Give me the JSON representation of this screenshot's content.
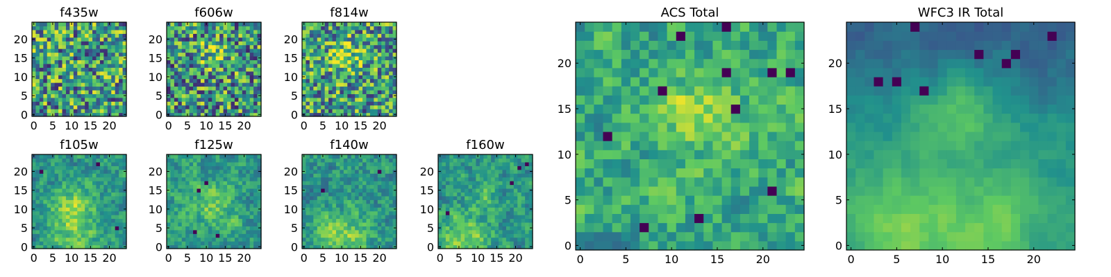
{
  "figure": {
    "colormap": "viridis",
    "colormap_stops": [
      "#440154",
      "#3b528b",
      "#21918c",
      "#5ec962",
      "#fde725"
    ]
  },
  "chart_data": [
    {
      "type": "heatmap",
      "title": "f435w",
      "grid_size": [
        25,
        25
      ],
      "xlim": [
        0,
        24
      ],
      "ylim": [
        0,
        24
      ],
      "x_ticks": [
        0,
        5,
        10,
        15,
        20
      ],
      "y_ticks": [
        0,
        5,
        10,
        15,
        20
      ],
      "x_tick_labels": [
        "0",
        "5",
        "10",
        "15",
        "20"
      ],
      "y_tick_labels": [
        "0",
        "5",
        "10",
        "15",
        "20"
      ],
      "seed": 11,
      "noise": 0.85,
      "base": 0.55,
      "blobs": [],
      "dark_spots": []
    },
    {
      "type": "heatmap",
      "title": "f606w",
      "grid_size": [
        25,
        25
      ],
      "xlim": [
        0,
        24
      ],
      "ylim": [
        0,
        24
      ],
      "x_ticks": [
        0,
        5,
        10,
        15,
        20
      ],
      "y_ticks": [
        0,
        5,
        10,
        15,
        20
      ],
      "x_tick_labels": [
        "0",
        "5",
        "10",
        "15",
        "20"
      ],
      "y_tick_labels": [
        "0",
        "5",
        "10",
        "15",
        "20"
      ],
      "seed": 23,
      "noise": 0.85,
      "base": 0.52,
      "blobs": [
        {
          "x": 12,
          "y": 16,
          "r": 3,
          "a": 0.25
        }
      ],
      "dark_spots": []
    },
    {
      "type": "heatmap",
      "title": "f814w",
      "grid_size": [
        25,
        25
      ],
      "xlim": [
        0,
        24
      ],
      "ylim": [
        0,
        24
      ],
      "x_ticks": [
        0,
        5,
        10,
        15,
        20
      ],
      "y_ticks": [
        0,
        5,
        10,
        15,
        20
      ],
      "x_tick_labels": [
        "0",
        "5",
        "10",
        "15",
        "20"
      ],
      "y_tick_labels": [
        "0",
        "5",
        "10",
        "15",
        "20"
      ],
      "seed": 37,
      "noise": 0.8,
      "base": 0.55,
      "blobs": [
        {
          "x": 11,
          "y": 16,
          "r": 3,
          "a": 0.3
        }
      ],
      "dark_spots": []
    },
    {
      "type": "heatmap",
      "title": "f105w",
      "grid_size": [
        25,
        25
      ],
      "xlim": [
        0,
        24
      ],
      "ylim": [
        0,
        24
      ],
      "x_ticks": [
        0,
        5,
        10,
        15,
        20
      ],
      "y_ticks": [
        0,
        5,
        10,
        15,
        20
      ],
      "x_tick_labels": [
        "0",
        "5",
        "10",
        "15",
        "20"
      ],
      "y_tick_labels": [
        "0",
        "5",
        "10",
        "15",
        "20"
      ],
      "seed": 41,
      "noise": 0.55,
      "base": 0.5,
      "blobs": [
        {
          "x": 11,
          "y": 12,
          "r": 4,
          "a": 0.25
        },
        {
          "x": 10,
          "y": 4,
          "r": 5,
          "a": 0.25
        }
      ],
      "dark_spots": [
        {
          "x": 2,
          "y": 20
        },
        {
          "x": 22,
          "y": 5
        },
        {
          "x": 17,
          "y": 22
        }
      ]
    },
    {
      "type": "heatmap",
      "title": "f125w",
      "grid_size": [
        25,
        25
      ],
      "xlim": [
        0,
        24
      ],
      "ylim": [
        0,
        24
      ],
      "x_ticks": [
        0,
        5,
        10,
        15,
        20
      ],
      "y_ticks": [
        0,
        5,
        10,
        15,
        20
      ],
      "x_tick_labels": [
        "0",
        "5",
        "10",
        "15",
        "20"
      ],
      "y_tick_labels": [
        "0",
        "5",
        "10",
        "15",
        "20"
      ],
      "seed": 53,
      "noise": 0.55,
      "base": 0.55,
      "blobs": [
        {
          "x": 12,
          "y": 11,
          "r": 4,
          "a": 0.2
        }
      ],
      "dark_spots": [
        {
          "x": 8,
          "y": 15
        },
        {
          "x": 10,
          "y": 17
        },
        {
          "x": 7,
          "y": 4
        },
        {
          "x": 13,
          "y": 3
        }
      ]
    },
    {
      "type": "heatmap",
      "title": "f140w",
      "grid_size": [
        25,
        25
      ],
      "xlim": [
        0,
        24
      ],
      "ylim": [
        0,
        24
      ],
      "x_ticks": [
        0,
        5,
        10,
        15,
        20
      ],
      "y_ticks": [
        0,
        5,
        10,
        15,
        20
      ],
      "x_tick_labels": [
        "0",
        "5",
        "10",
        "15",
        "20"
      ],
      "y_tick_labels": [
        "0",
        "5",
        "10",
        "15",
        "20"
      ],
      "seed": 67,
      "noise": 0.55,
      "base": 0.52,
      "blobs": [
        {
          "x": 10,
          "y": 2,
          "r": 5,
          "a": 0.3
        }
      ],
      "dark_spots": [
        {
          "x": 5,
          "y": 15
        },
        {
          "x": 20,
          "y": 20
        }
      ]
    },
    {
      "type": "heatmap",
      "title": "f160w",
      "grid_size": [
        25,
        25
      ],
      "xlim": [
        0,
        24
      ],
      "ylim": [
        0,
        24
      ],
      "x_ticks": [
        0,
        5,
        10,
        15,
        20
      ],
      "y_ticks": [
        0,
        5,
        10,
        15,
        20
      ],
      "x_tick_labels": [
        "0",
        "5",
        "10",
        "15",
        "20"
      ],
      "y_tick_labels": [
        "0",
        "5",
        "10",
        "15",
        "20"
      ],
      "seed": 79,
      "noise": 0.55,
      "base": 0.52,
      "blobs": [
        {
          "x": 6,
          "y": 2,
          "r": 5,
          "a": 0.3
        },
        {
          "x": 12,
          "y": 14,
          "r": 3,
          "a": 0.15
        }
      ],
      "dark_spots": [
        {
          "x": 2,
          "y": 9
        },
        {
          "x": 23,
          "y": 22
        },
        {
          "x": 21,
          "y": 21
        },
        {
          "x": 19,
          "y": 17
        }
      ]
    },
    {
      "type": "heatmap",
      "title": "ACS Total",
      "grid_size": [
        25,
        25
      ],
      "xlim": [
        0,
        24
      ],
      "ylim": [
        0,
        24
      ],
      "x_ticks": [
        0,
        5,
        10,
        15,
        20
      ],
      "y_ticks": [
        0,
        5,
        10,
        15,
        20
      ],
      "x_tick_labels": [
        "0",
        "5",
        "10",
        "15",
        "20"
      ],
      "y_tick_labels": [
        "0",
        "5",
        "10",
        "15",
        "20"
      ],
      "seed": 97,
      "noise": 0.6,
      "base": 0.6,
      "blobs": [
        {
          "x": 13,
          "y": 15,
          "r": 3,
          "a": 0.25
        }
      ],
      "dark_spots": [
        {
          "x": 11,
          "y": 23
        },
        {
          "x": 16,
          "y": 24
        },
        {
          "x": 16,
          "y": 19
        },
        {
          "x": 23,
          "y": 19
        },
        {
          "x": 21,
          "y": 19
        },
        {
          "x": 17,
          "y": 15
        },
        {
          "x": 21,
          "y": 6
        },
        {
          "x": 3,
          "y": 12
        },
        {
          "x": 7,
          "y": 2
        },
        {
          "x": 13,
          "y": 3
        },
        {
          "x": 9,
          "y": 17
        }
      ]
    },
    {
      "type": "heatmap",
      "title": "WFC3 IR Total",
      "grid_size": [
        25,
        25
      ],
      "xlim": [
        0,
        24
      ],
      "ylim": [
        0,
        24
      ],
      "x_ticks": [
        0,
        5,
        10,
        15,
        20
      ],
      "y_ticks": [
        0,
        5,
        10,
        15,
        20
      ],
      "x_tick_labels": [
        "0",
        "5",
        "10",
        "15",
        "20"
      ],
      "y_tick_labels": [
        "0",
        "5",
        "10",
        "15",
        "20"
      ],
      "seed": 131,
      "noise": 0.3,
      "base": 0.48,
      "top_dark": true,
      "blobs": [
        {
          "x": 12,
          "y": 15,
          "r": 3,
          "a": 0.25
        },
        {
          "x": 6,
          "y": 1,
          "r": 6,
          "a": 0.3
        },
        {
          "x": 18,
          "y": 3,
          "r": 5,
          "a": 0.2
        }
      ],
      "dark_spots": [
        {
          "x": 7,
          "y": 24
        },
        {
          "x": 3,
          "y": 18
        },
        {
          "x": 5,
          "y": 18
        },
        {
          "x": 17,
          "y": 20
        },
        {
          "x": 18,
          "y": 21
        },
        {
          "x": 22,
          "y": 23
        },
        {
          "x": 8,
          "y": 17
        },
        {
          "x": 14,
          "y": 21
        }
      ]
    }
  ]
}
